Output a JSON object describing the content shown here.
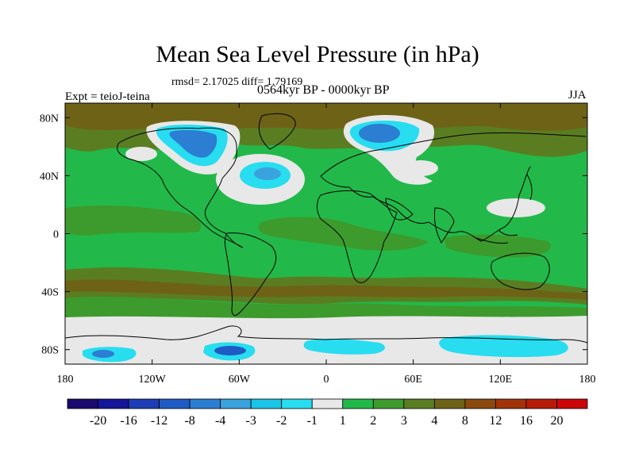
{
  "title": "Mean Sea Level Pressure (in hPa)",
  "stats": "rmsd= 2.17025 diff= 1.79169",
  "period": "0564kyr BP - 0000kyr BP",
  "experiment": "Expt = teioJ-teina",
  "season": "JJA",
  "map": {
    "projection": "cylindrical-equidistant",
    "lon_range": [
      -180,
      180
    ],
    "lat_range": [
      -90,
      90
    ],
    "x_ticks": [
      {
        "lon": -180,
        "label": "180"
      },
      {
        "lon": -120,
        "label": "120W"
      },
      {
        "lon": -60,
        "label": "60W"
      },
      {
        "lon": 0,
        "label": "0"
      },
      {
        "lon": 60,
        "label": "60E"
      },
      {
        "lon": 120,
        "label": "120E"
      },
      {
        "lon": 180,
        "label": "180"
      }
    ],
    "y_ticks": [
      {
        "lat": 80,
        "label": "80N"
      },
      {
        "lat": 40,
        "label": "40N"
      },
      {
        "lat": 0,
        "label": "0"
      },
      {
        "lat": -40,
        "label": "40S"
      },
      {
        "lat": -80,
        "label": "80S"
      }
    ]
  },
  "colorbar": {
    "colors": [
      "#1a0a6e",
      "#15159a",
      "#1e3cb4",
      "#1f5bc4",
      "#2b7ed2",
      "#3aa2dc",
      "#19c4e6",
      "#27ddef",
      "#e8e8e8",
      "#22b94a",
      "#3d9a2c",
      "#5a7d21",
      "#6e6217",
      "#8a4a0e",
      "#a1320a",
      "#b61b08",
      "#cc0606"
    ],
    "labels": [
      "-20",
      "-16",
      "-12",
      "-8",
      "-4",
      "-3",
      "-2",
      "-1",
      "1",
      "2",
      "3",
      "4",
      "8",
      "12",
      "16",
      "20"
    ]
  }
}
